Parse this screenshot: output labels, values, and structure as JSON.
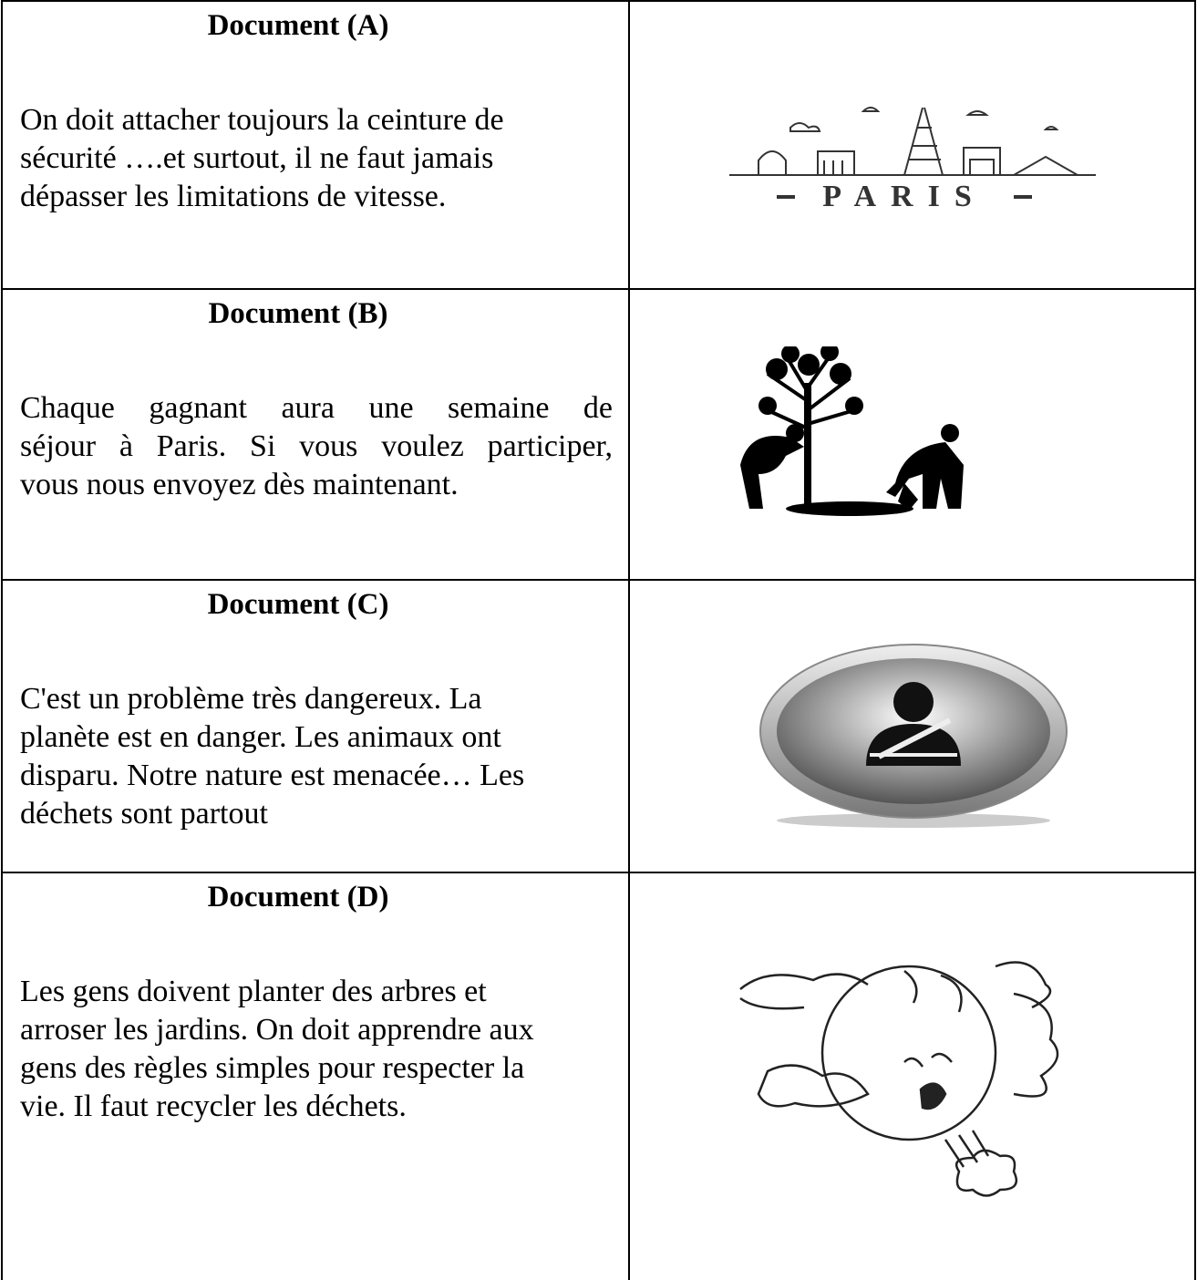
{
  "documents": [
    {
      "title": "Document (A)",
      "lines": [
        "On doit attacher toujours la ceinture de",
        "sécurité ….et surtout, il ne faut jamais",
        "dépasser les limitations de vitesse."
      ],
      "image_text": "PARIS"
    },
    {
      "title": "Document (B)",
      "lines": [
        "Chaque gagnant aura une semaine de",
        "séjour à Paris. Si vous voulez participer,",
        "vous nous envoyez dès maintenant."
      ]
    },
    {
      "title": "Document (C)",
      "lines": [
        "C'est un problème très dangereux. La",
        "planète est en danger. Les animaux ont",
        "disparu. Notre nature est menacée…  Les",
        "déchets sont partout"
      ]
    },
    {
      "title": "Document (D)",
      "lines": [
        "Les gens doivent planter des arbres et",
        "arroser les jardins. On doit apprendre aux",
        "gens des règles simples pour respecter la",
        "vie. Il faut recycler les déchets."
      ]
    }
  ]
}
